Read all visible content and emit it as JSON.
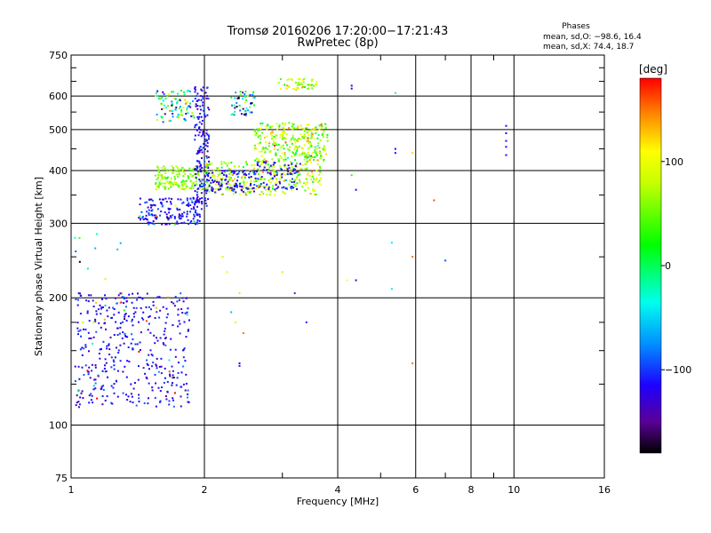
{
  "chart_data": {
    "type": "scatter",
    "title": "Tromsø 20160206 17:20:00−17:21:43",
    "subtitle": "RwPretec (8p)",
    "xlabel": "Frequency [MHz]",
    "ylabel": "Stationary phase Virtual Height [km]",
    "x_scale": "log",
    "y_scale": "log",
    "xlim": [
      1,
      16
    ],
    "ylim": [
      75,
      750
    ],
    "x_ticks": [
      1,
      2,
      4,
      6,
      8,
      10,
      16
    ],
    "x_tick_labels": [
      "1",
      "2",
      "4",
      "6",
      "8",
      "10",
      "16"
    ],
    "x_minor_ticks": [
      3,
      5,
      7,
      9
    ],
    "y_ticks": [
      75,
      100,
      200,
      300,
      400,
      500,
      600,
      750
    ],
    "y_tick_labels": [
      "75",
      "100",
      "200",
      "300",
      "400",
      "500",
      "600",
      "750"
    ],
    "y_minor_ticks": [
      125,
      150,
      175,
      250,
      350,
      450,
      550,
      650,
      700
    ],
    "grid": true,
    "info": {
      "heading": "Phases",
      "line1": "mean, sd,O: −98.6, 16.4",
      "line2": "mean, sd,X:  74.4, 18.7"
    },
    "colorbar": {
      "label": "[deg]",
      "range": [
        -180,
        180
      ],
      "ticks": [
        100,
        0,
        -100
      ],
      "tick_labels": [
        "100",
        "0",
        "−100"
      ],
      "stops": [
        {
          "v": -180,
          "color": "#000000"
        },
        {
          "v": -150,
          "color": "#5a0096"
        },
        {
          "v": -115,
          "color": "#1e00ff"
        },
        {
          "v": -75,
          "color": "#0090ff"
        },
        {
          "v": -35,
          "color": "#00ffee"
        },
        {
          "v": 20,
          "color": "#00ff00"
        },
        {
          "v": 80,
          "color": "#c8ff00"
        },
        {
          "v": 110,
          "color": "#ffff00"
        },
        {
          "v": 145,
          "color": "#ff8800"
        },
        {
          "v": 180,
          "color": "#ff0000"
        }
      ]
    },
    "clusters": [
      {
        "f": [
          1.02,
          1.85
        ],
        "h": [
          110,
          205
        ],
        "n": 420,
        "phase": [
          -115,
          15
        ],
        "frac_green": 0.08,
        "green": [
          30,
          120
        ]
      },
      {
        "f": [
          1.42,
          1.98
        ],
        "h": [
          298,
          345
        ],
        "n": 160,
        "phase": [
          -115,
          15
        ],
        "frac_green": 0.05,
        "green": [
          30,
          120
        ]
      },
      {
        "f": [
          1.55,
          2.0
        ],
        "h": [
          360,
          410
        ],
        "n": 160,
        "phase": [
          60,
          20
        ],
        "frac_green": 0.0,
        "green": [
          60,
          20
        ]
      },
      {
        "f": [
          1.55,
          1.9
        ],
        "h": [
          520,
          620
        ],
        "n": 90,
        "phase": [
          -20,
          90
        ],
        "frac_green": 0.0,
        "green": [
          0,
          0
        ]
      },
      {
        "f": [
          1.9,
          2.05
        ],
        "h": [
          330,
          630
        ],
        "n": 170,
        "phase": [
          -115,
          15
        ],
        "frac_green": 0.0,
        "green": [
          0,
          0
        ]
      },
      {
        "f": [
          2.0,
          3.7
        ],
        "h": [
          350,
          420
        ],
        "n": 300,
        "phase": [
          75,
          35
        ],
        "frac_green": 0.0,
        "green": [
          0,
          0
        ]
      },
      {
        "f": [
          2.6,
          3.8
        ],
        "h": [
          420,
          520
        ],
        "n": 300,
        "phase": [
          70,
          40
        ],
        "frac_green": 0.0,
        "green": [
          0,
          0
        ]
      },
      {
        "f": [
          2.3,
          2.6
        ],
        "h": [
          540,
          620
        ],
        "n": 50,
        "phase": [
          -60,
          80
        ],
        "frac_green": 0.0,
        "green": [
          0,
          0
        ]
      },
      {
        "f": [
          2.9,
          3.6
        ],
        "h": [
          620,
          660
        ],
        "n": 50,
        "phase": [
          80,
          25
        ],
        "frac_green": 0.0,
        "green": [
          0,
          0
        ]
      },
      {
        "f": [
          2.05,
          2.6
        ],
        "h": [
          355,
          400
        ],
        "n": 90,
        "phase": [
          -115,
          15
        ],
        "frac_green": 0.0,
        "green": [
          0,
          0
        ]
      },
      {
        "f": [
          2.6,
          3.3
        ],
        "h": [
          360,
          420
        ],
        "n": 80,
        "phase": [
          -110,
          15
        ],
        "frac_green": 0.0,
        "green": [
          0,
          0
        ]
      },
      {
        "f": [
          1.02,
          1.3
        ],
        "h": [
          205,
          300
        ],
        "n": 10,
        "phase": [
          -60,
          80
        ],
        "frac_green": 0.0,
        "green": [
          0,
          0
        ]
      }
    ],
    "isolated_points": [
      [
        9.6,
        510,
        -115
      ],
      [
        9.6,
        490,
        -115
      ],
      [
        9.6,
        470,
        -115
      ],
      [
        9.6,
        455,
        -115
      ],
      [
        9.6,
        435,
        -115
      ],
      [
        5.4,
        450,
        -115
      ],
      [
        5.4,
        440,
        -115
      ],
      [
        5.4,
        610,
        -20
      ],
      [
        4.3,
        625,
        -120
      ],
      [
        4.3,
        635,
        -120
      ],
      [
        4.3,
        390,
        30
      ],
      [
        4.4,
        360,
        -115
      ],
      [
        4.2,
        220,
        110
      ],
      [
        4.4,
        220,
        -120
      ],
      [
        5.3,
        210,
        -40
      ],
      [
        5.3,
        270,
        -40
      ],
      [
        5.9,
        440,
        120
      ],
      [
        5.9,
        250,
        150
      ],
      [
        5.9,
        140,
        150
      ],
      [
        6.6,
        340,
        160
      ],
      [
        7.0,
        245,
        -90
      ],
      [
        2.4,
        140,
        -110
      ],
      [
        2.4,
        138,
        -110
      ],
      [
        2.45,
        165,
        150
      ],
      [
        2.35,
        175,
        90
      ],
      [
        2.4,
        205,
        80
      ],
      [
        2.2,
        250,
        90
      ],
      [
        2.3,
        185,
        -60
      ],
      [
        2.25,
        230,
        100
      ],
      [
        3.2,
        205,
        -100
      ],
      [
        3.4,
        175,
        -110
      ],
      [
        3.0,
        230,
        80
      ]
    ]
  }
}
